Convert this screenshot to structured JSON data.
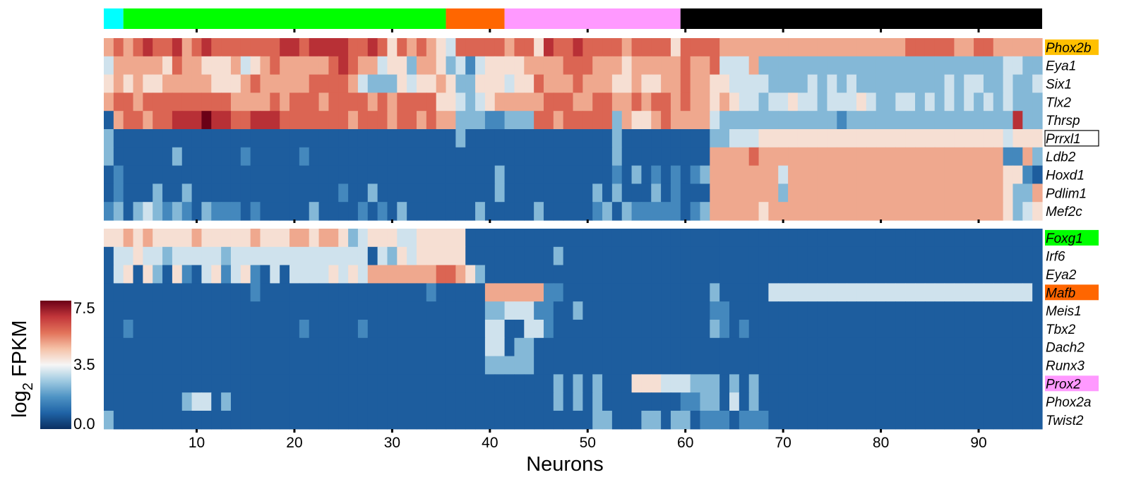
{
  "chart_data": {
    "type": "heatmap",
    "xlabel": "Neurons",
    "colorbar": {
      "label_main": "log",
      "label_sub": "2",
      "label_rest": " FPKM",
      "ticks": [
        "7.5",
        "3.5",
        "0.0"
      ],
      "range": [
        0,
        7.5
      ],
      "colors": [
        "#0b2f61",
        "#1f63a6",
        "#4e93c4",
        "#9fcae1",
        "#f6f6f6",
        "#f5c2a8",
        "#e2735a",
        "#c2363a",
        "#6a0016"
      ]
    },
    "x_ticks": [
      "10",
      "20",
      "30",
      "40",
      "50",
      "60",
      "70",
      "80",
      "90"
    ],
    "n_neurons": 96,
    "groups": [
      {
        "color": "#00ffff",
        "start": 1,
        "end": 2
      },
      {
        "color": "#00ff00",
        "start": 3,
        "end": 35
      },
      {
        "color": "#ff6600",
        "start": 36,
        "end": 41
      },
      {
        "color": "#ff99ff",
        "start": 42,
        "end": 59
      },
      {
        "color": "#000000",
        "start": 60,
        "end": 96
      }
    ],
    "panels": [
      {
        "genes": [
          {
            "name": "Phox2b",
            "highlight": "#ffc000"
          },
          {
            "name": "Eya1",
            "highlight": ""
          },
          {
            "name": "Six1",
            "highlight": ""
          },
          {
            "name": "Tlx2",
            "highlight": ""
          },
          {
            "name": "Thrsp",
            "highlight": ""
          },
          {
            "name": "Prrxl1",
            "highlight": "box"
          },
          {
            "name": "Ldb2",
            "highlight": ""
          },
          {
            "name": "Hoxd1",
            "highlight": ""
          },
          {
            "name": "Pdlim1",
            "highlight": ""
          },
          {
            "name": "Mef2c",
            "highlight": ""
          }
        ]
      },
      {
        "genes": [
          {
            "name": "Foxg1",
            "highlight": "#00ff00"
          },
          {
            "name": "Irf6",
            "highlight": ""
          },
          {
            "name": "Eya2",
            "highlight": ""
          },
          {
            "name": "Mafb",
            "highlight": "#ff6600"
          },
          {
            "name": "Meis1",
            "highlight": ""
          },
          {
            "name": "Tbx2",
            "highlight": ""
          },
          {
            "name": "Dach2",
            "highlight": ""
          },
          {
            "name": "Runx3",
            "highlight": ""
          },
          {
            "name": "Prox2",
            "highlight": "#ff99ff"
          },
          {
            "name": "Phox2a",
            "highlight": ""
          },
          {
            "name": "Twist2",
            "highlight": ""
          }
        ]
      }
    ],
    "values_encoding": "Each row is a 96-character string; digit d = expression level round(d*7.5/9) log2 FPKM (0 = 0.0, 9 = 7.5).",
    "values": [
      "67678778678777777788788887787576765477777677587787777677775777766666666666666666667777766776666666",
      "46666657665556456766666787664553665342455556666777666566666766744463333333333333333333333333443333",
      "56565566666555676666677776433354556533555455766676665565566766554444333343434333333333434433433433",
      "67767777777776666767776777767677775543456666677766776676776766565443445443444543344343434343433333",
      "16776778889887788877777776777677676633322333776777773655676666433333333333323333333333333333383333",
      "31111111111111111111111111111111111131111111111111113111111111334445555555555555555555555555455533",
      "31111113111111211111211111111111111111111111111111113111111111666676666666666666666666666666226322",
      "12111111111111111111111111111111111111113111111111112131212123666666646666666666666666666666552133",
      "12111311311111111111111121131111111111113111111111313111312111666666636666666666666666666666533633",
      "23134323213222121111131111212131111111311111311111231322222123666665666666666666666666666666534543"
    ],
    "values2": [
      "55656555565555565556656653455544555551111111111111111111111111111111111111111111111111111111111111",
      "14454434444434444444444444414354555551111111113111111111111111111111111111111111111111111111111111",
      "14515315214524521414444545466666667765311111111111111111111111111111111111111111111111111111111111",
      "11111111111111121111111111111111121111166666622111111111111111311111444444444444444444444444444111",
      "11111111111111111111111111111111111111133444221131111111111111221111111111111111111111111111111112",
      "11211111111111111111211111211111111111144114421111111111111111321211111111111111111111111111111114",
      "11111111111111111111111111111111111111144133111111111111111111111111111111111111111111111111111113",
      "11111111111111111111111111111111111111133333111111111111111111111111111111111111111111111111111114",
      "11111111111111111111111111111111111111111111113131311155544433313131111111111111111111111111111111",
      "11111111344131111111111111111111111111111111113131311111111223314131111111111111111111111111111111",
      "31111111111111111111111111111111111111111111111111331113313312221222111111111111111111111111111111"
    ]
  }
}
